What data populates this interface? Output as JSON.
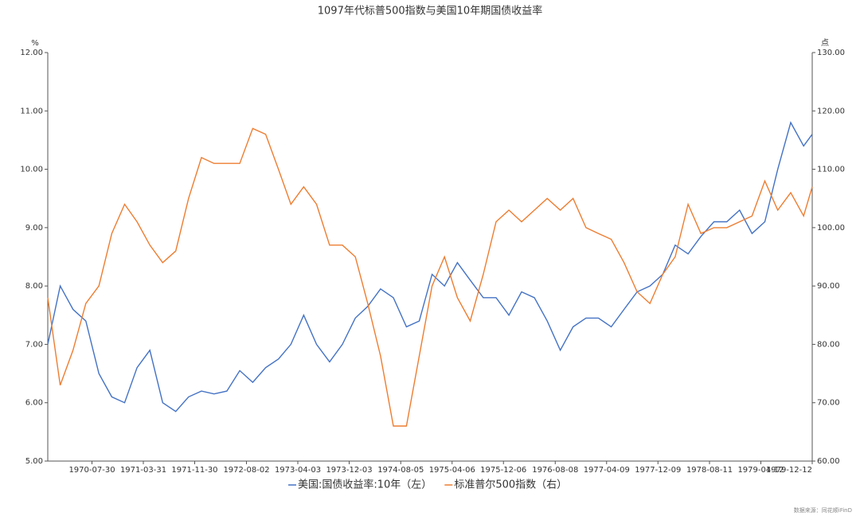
{
  "chart_data": {
    "type": "line",
    "title": "1097年代标普500指数与美国10年期国债收益率",
    "y_label": "%",
    "y2_label": "点",
    "source": "数据来源：同花顺iFinD",
    "x": [
      "1970-01-01",
      "1970-03-01",
      "1970-05-01",
      "1970-07-01",
      "1970-09-01",
      "1970-11-01",
      "1971-01-01",
      "1971-03-01",
      "1971-05-01",
      "1971-07-01",
      "1971-09-01",
      "1971-11-01",
      "1972-01-01",
      "1972-03-01",
      "1972-05-01",
      "1972-07-01",
      "1972-09-01",
      "1972-11-01",
      "1973-01-01",
      "1973-03-01",
      "1973-05-01",
      "1973-07-01",
      "1973-09-01",
      "1973-11-01",
      "1974-01-01",
      "1974-03-01",
      "1974-05-01",
      "1974-07-01",
      "1974-09-01",
      "1974-11-01",
      "1975-01-01",
      "1975-03-01",
      "1975-05-01",
      "1975-07-01",
      "1975-09-01",
      "1975-11-01",
      "1976-01-01",
      "1976-03-01",
      "1976-05-01",
      "1976-07-01",
      "1976-09-01",
      "1976-11-01",
      "1977-01-01",
      "1977-03-01",
      "1977-05-01",
      "1977-07-01",
      "1977-09-01",
      "1977-11-01",
      "1978-01-01",
      "1978-03-01",
      "1978-05-01",
      "1978-07-01",
      "1978-09-01",
      "1978-11-01",
      "1979-01-01",
      "1979-03-01",
      "1979-05-01",
      "1979-07-01",
      "1979-09-01",
      "1979-11-01",
      "1979-12-12"
    ],
    "xlim": [
      "1970-01-01",
      "1979-12-12"
    ],
    "xticks": [
      "1970-07-30",
      "1971-03-31",
      "1971-11-30",
      "1972-08-02",
      "1973-04-03",
      "1973-12-03",
      "1974-08-05",
      "1975-04-06",
      "1975-12-06",
      "1976-08-08",
      "1977-04-09",
      "1977-12-09",
      "1978-08-11",
      "1979-04-12",
      "1979-12-12"
    ],
    "ylim": [
      5,
      12
    ],
    "yticks": [
      {
        "value": 5,
        "label": "5.00"
      },
      {
        "value": 6,
        "label": "6.00"
      },
      {
        "value": 7,
        "label": "7.00"
      },
      {
        "value": 8,
        "label": "8.00"
      },
      {
        "value": 9,
        "label": "9.00"
      },
      {
        "value": 10,
        "label": "10.00"
      },
      {
        "value": 11,
        "label": "11.00"
      },
      {
        "value": 12,
        "label": "12.00"
      }
    ],
    "y2lim": [
      60,
      130
    ],
    "y2ticks": [
      {
        "value": 60,
        "label": "60.00"
      },
      {
        "value": 70,
        "label": "70.00"
      },
      {
        "value": 80,
        "label": "80.00"
      },
      {
        "value": 90,
        "label": "90.00"
      },
      {
        "value": 100,
        "label": "100.00"
      },
      {
        "value": 110,
        "label": "110.00"
      },
      {
        "value": 120,
        "label": "120.00"
      },
      {
        "value": 130,
        "label": "130.00"
      }
    ],
    "series": [
      {
        "name": "美国:国债收益率:10年（左）",
        "color": "#4472c4",
        "axis": "y",
        "values": [
          7.0,
          8.0,
          7.6,
          7.4,
          6.5,
          6.1,
          6.0,
          6.6,
          6.9,
          6.0,
          5.85,
          6.1,
          6.2,
          6.15,
          6.2,
          6.55,
          6.35,
          6.6,
          6.75,
          7.0,
          7.5,
          7.0,
          6.7,
          7.0,
          7.45,
          7.65,
          7.95,
          7.8,
          7.3,
          7.4,
          8.2,
          8.0,
          8.4,
          8.1,
          7.8,
          7.8,
          7.5,
          7.9,
          7.8,
          7.4,
          6.9,
          7.3,
          7.45,
          7.45,
          7.3,
          7.6,
          7.9,
          8.0,
          8.2,
          8.7,
          8.55,
          8.85,
          9.1,
          9.1,
          9.3,
          8.9,
          9.1,
          10.0,
          10.8,
          10.4,
          10.6
        ]
      },
      {
        "name": "标准普尔500指数（右）",
        "color": "#ed7d31",
        "axis": "y2",
        "values": [
          88,
          73,
          79,
          87,
          90,
          99,
          104,
          101,
          97,
          94,
          96,
          105,
          112,
          111,
          111,
          111,
          117,
          116,
          110,
          104,
          107,
          104,
          97,
          97,
          95,
          87,
          78,
          66,
          66,
          78,
          90,
          95,
          88,
          84,
          92,
          101,
          103,
          101,
          103,
          105,
          103,
          105,
          100,
          99,
          98,
          94,
          89,
          87,
          92,
          95,
          104,
          99,
          100,
          100,
          101,
          102,
          108,
          103,
          106,
          102,
          107
        ]
      }
    ],
    "legend": "bottom"
  }
}
